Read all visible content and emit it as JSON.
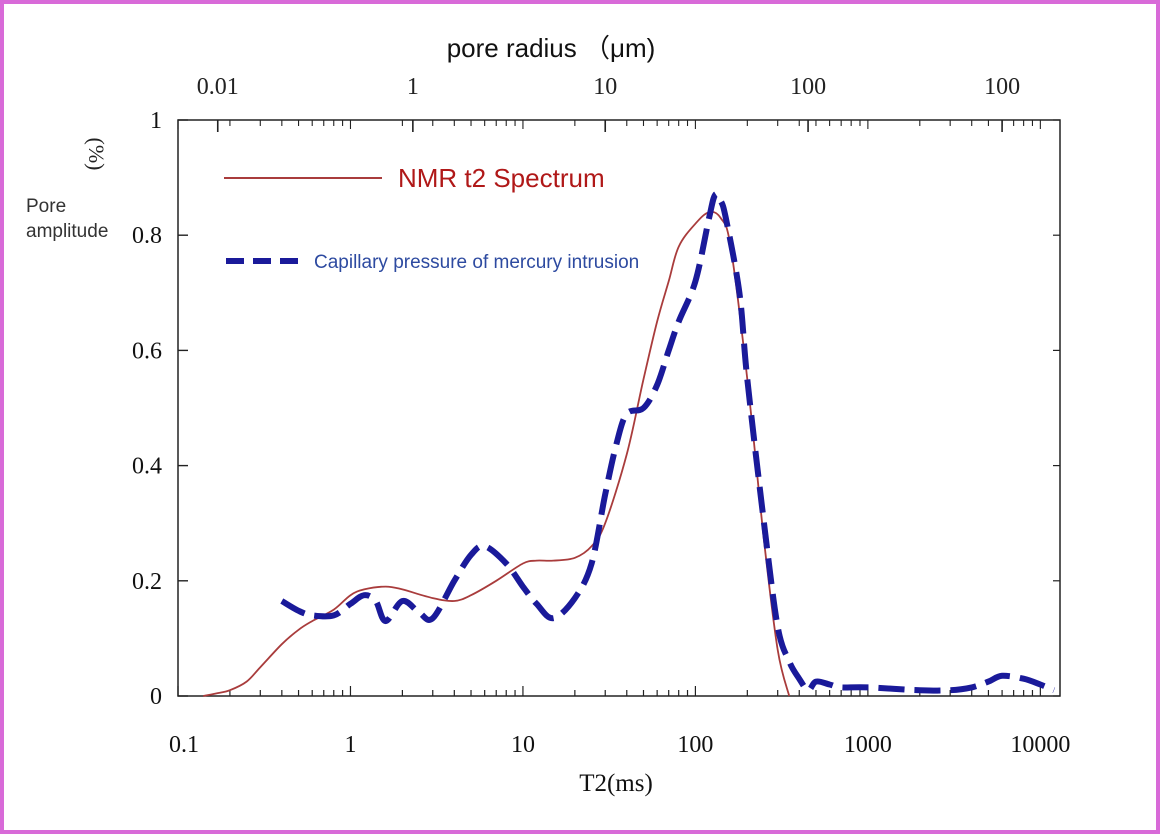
{
  "chart_data": {
    "type": "line",
    "title": "",
    "xlabel": "T2(ms)",
    "x2label": "pore radius （μm)",
    "ylabel": "Pore amplitude",
    "ylabel_unit": "(%)",
    "xscale": "log",
    "xlim": [
      0.1,
      13000
    ],
    "ylim": [
      0,
      1
    ],
    "x_ticks": [
      "0.1",
      "1",
      "10",
      "100",
      "1000",
      "10000"
    ],
    "x_tick_values": [
      0.1,
      1,
      10,
      100,
      1000,
      10000
    ],
    "y_ticks": [
      "0",
      "0.2",
      "0.4",
      "0.6",
      "0.8",
      "1"
    ],
    "y_tick_values": [
      0,
      0.2,
      0.4,
      0.6,
      0.8,
      1
    ],
    "top_ticks": [
      "0.01",
      "1",
      "10",
      "100",
      "100"
    ],
    "top_tick_t2": [
      0.17,
      2.3,
      30,
      450,
      6000
    ],
    "grid": false,
    "legend_position": "top-left",
    "series": [
      {
        "name": "NMR t2 Spectrum",
        "color": "#a93c3c",
        "style": "solid",
        "x": [
          0.14,
          0.17,
          0.2,
          0.25,
          0.3,
          0.4,
          0.5,
          0.6,
          0.8,
          1.0,
          1.2,
          1.6,
          2.0,
          3.0,
          4.0,
          5.0,
          7.0,
          10,
          12,
          15,
          20,
          25,
          30,
          40,
          50,
          60,
          70,
          80,
          100,
          120,
          140,
          160,
          200,
          250,
          300,
          350
        ],
        "y": [
          0.0,
          0.005,
          0.01,
          0.025,
          0.05,
          0.09,
          0.115,
          0.13,
          0.15,
          0.175,
          0.185,
          0.19,
          0.185,
          0.17,
          0.165,
          0.175,
          0.2,
          0.23,
          0.235,
          0.235,
          0.24,
          0.26,
          0.3,
          0.42,
          0.55,
          0.65,
          0.72,
          0.78,
          0.82,
          0.84,
          0.83,
          0.78,
          0.55,
          0.27,
          0.08,
          0.0
        ]
      },
      {
        "name": "Capillary pressure of mercury intrusion",
        "color": "#1a1a9a",
        "style": "dashed",
        "x": [
          0.4,
          0.5,
          0.6,
          0.8,
          1.0,
          1.2,
          1.4,
          1.6,
          2.0,
          2.5,
          3.0,
          4.0,
          5.0,
          6.0,
          8.0,
          10,
          12,
          15,
          20,
          25,
          30,
          35,
          40,
          50,
          60,
          70,
          80,
          100,
          120,
          130,
          140,
          150,
          180,
          200,
          250,
          300,
          350,
          400,
          450,
          500,
          600,
          700,
          1000,
          2000,
          3000,
          4000,
          5000,
          6000,
          8000,
          10000,
          12000
        ],
        "y": [
          0.165,
          0.148,
          0.14,
          0.14,
          0.16,
          0.175,
          0.165,
          0.13,
          0.165,
          0.145,
          0.135,
          0.2,
          0.245,
          0.26,
          0.23,
          0.19,
          0.16,
          0.135,
          0.17,
          0.23,
          0.35,
          0.44,
          0.49,
          0.5,
          0.54,
          0.6,
          0.65,
          0.72,
          0.83,
          0.87,
          0.86,
          0.83,
          0.7,
          0.55,
          0.3,
          0.12,
          0.06,
          0.03,
          0.01,
          0.025,
          0.02,
          0.015,
          0.015,
          0.01,
          0.01,
          0.015,
          0.025,
          0.035,
          0.03,
          0.02,
          0.01
        ]
      }
    ]
  }
}
